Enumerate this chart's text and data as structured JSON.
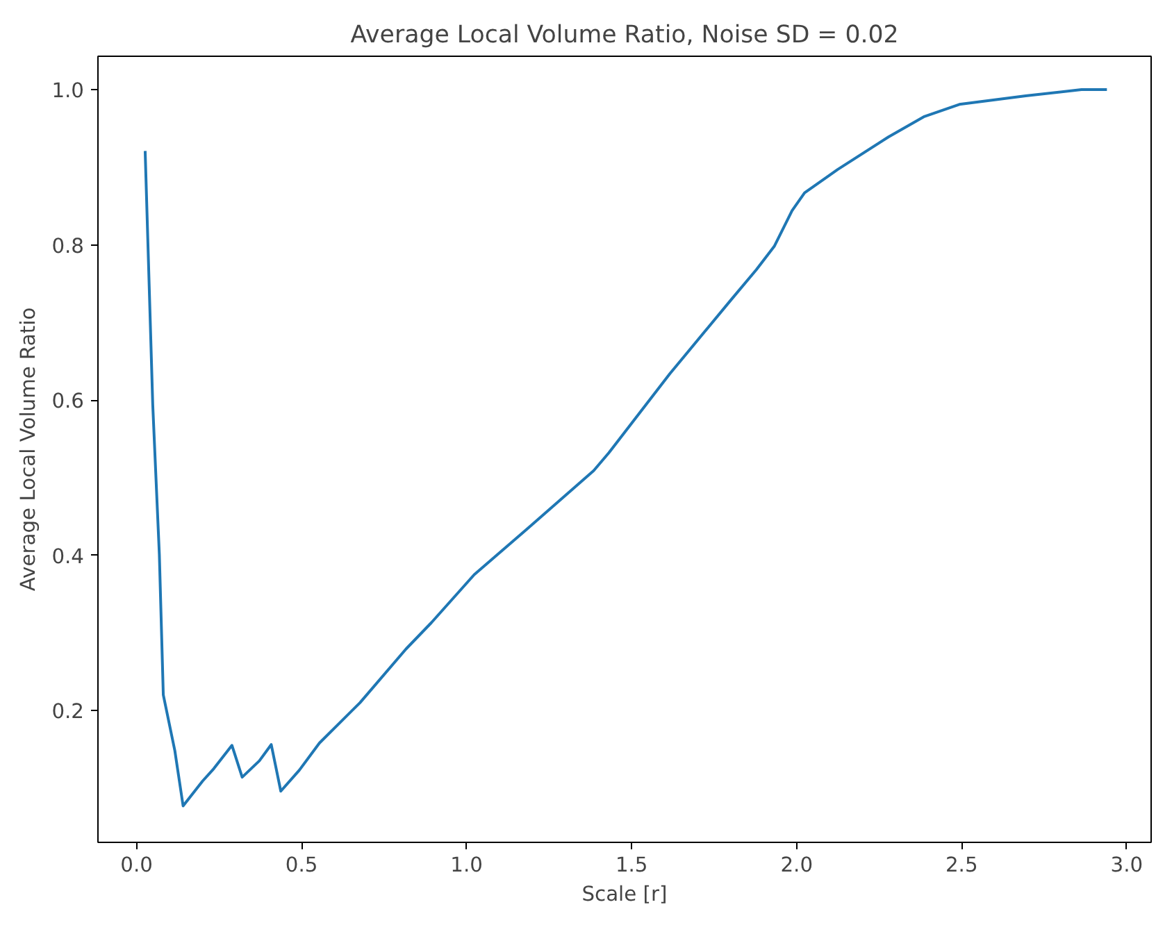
{
  "chart_data": {
    "type": "line",
    "title": "Average Local Volume Ratio, Noise SD = 0.02",
    "xlabel": "Scale [r]",
    "ylabel": "Average Local Volume Ratio",
    "xlim": [
      -0.117,
      3.074
    ],
    "ylim": [
      0.03,
      1.043
    ],
    "xticks": [
      {
        "value": 0,
        "label": "0.0"
      },
      0.5,
      {
        "value": 1,
        "label": "1.0"
      },
      1.5,
      {
        "value": 2,
        "label": "2.0"
      },
      2.5,
      {
        "value": 3,
        "label": "3.0"
      }
    ],
    "yticks": [
      0.2,
      0.4,
      0.6,
      0.8,
      {
        "value": 1,
        "label": "1.0"
      }
    ],
    "grid": false,
    "marker": "none",
    "line_style": "solid",
    "series": [
      {
        "color": "#1f77b4",
        "x": [
          0.026,
          0.049,
          0.069,
          0.081,
          0.116,
          0.141,
          0.2,
          0.234,
          0.289,
          0.32,
          0.372,
          0.408,
          0.437,
          0.493,
          0.554,
          0.677,
          0.816,
          0.893,
          1.023,
          1.2,
          1.385,
          1.431,
          1.616,
          1.801,
          1.878,
          1.932,
          1.986,
          2.024,
          2.124,
          2.278,
          2.385,
          2.493,
          2.694,
          2.863,
          2.94
        ],
        "values": [
          0.921,
          0.594,
          0.401,
          0.22,
          0.148,
          0.077,
          0.109,
          0.125,
          0.155,
          0.114,
          0.135,
          0.156,
          0.096,
          0.123,
          0.158,
          0.21,
          0.279,
          0.313,
          0.375,
          0.44,
          0.509,
          0.532,
          0.634,
          0.729,
          0.768,
          0.798,
          0.844,
          0.867,
          0.897,
          0.939,
          0.965,
          0.981,
          0.992,
          1.0,
          1.0
        ]
      }
    ]
  }
}
